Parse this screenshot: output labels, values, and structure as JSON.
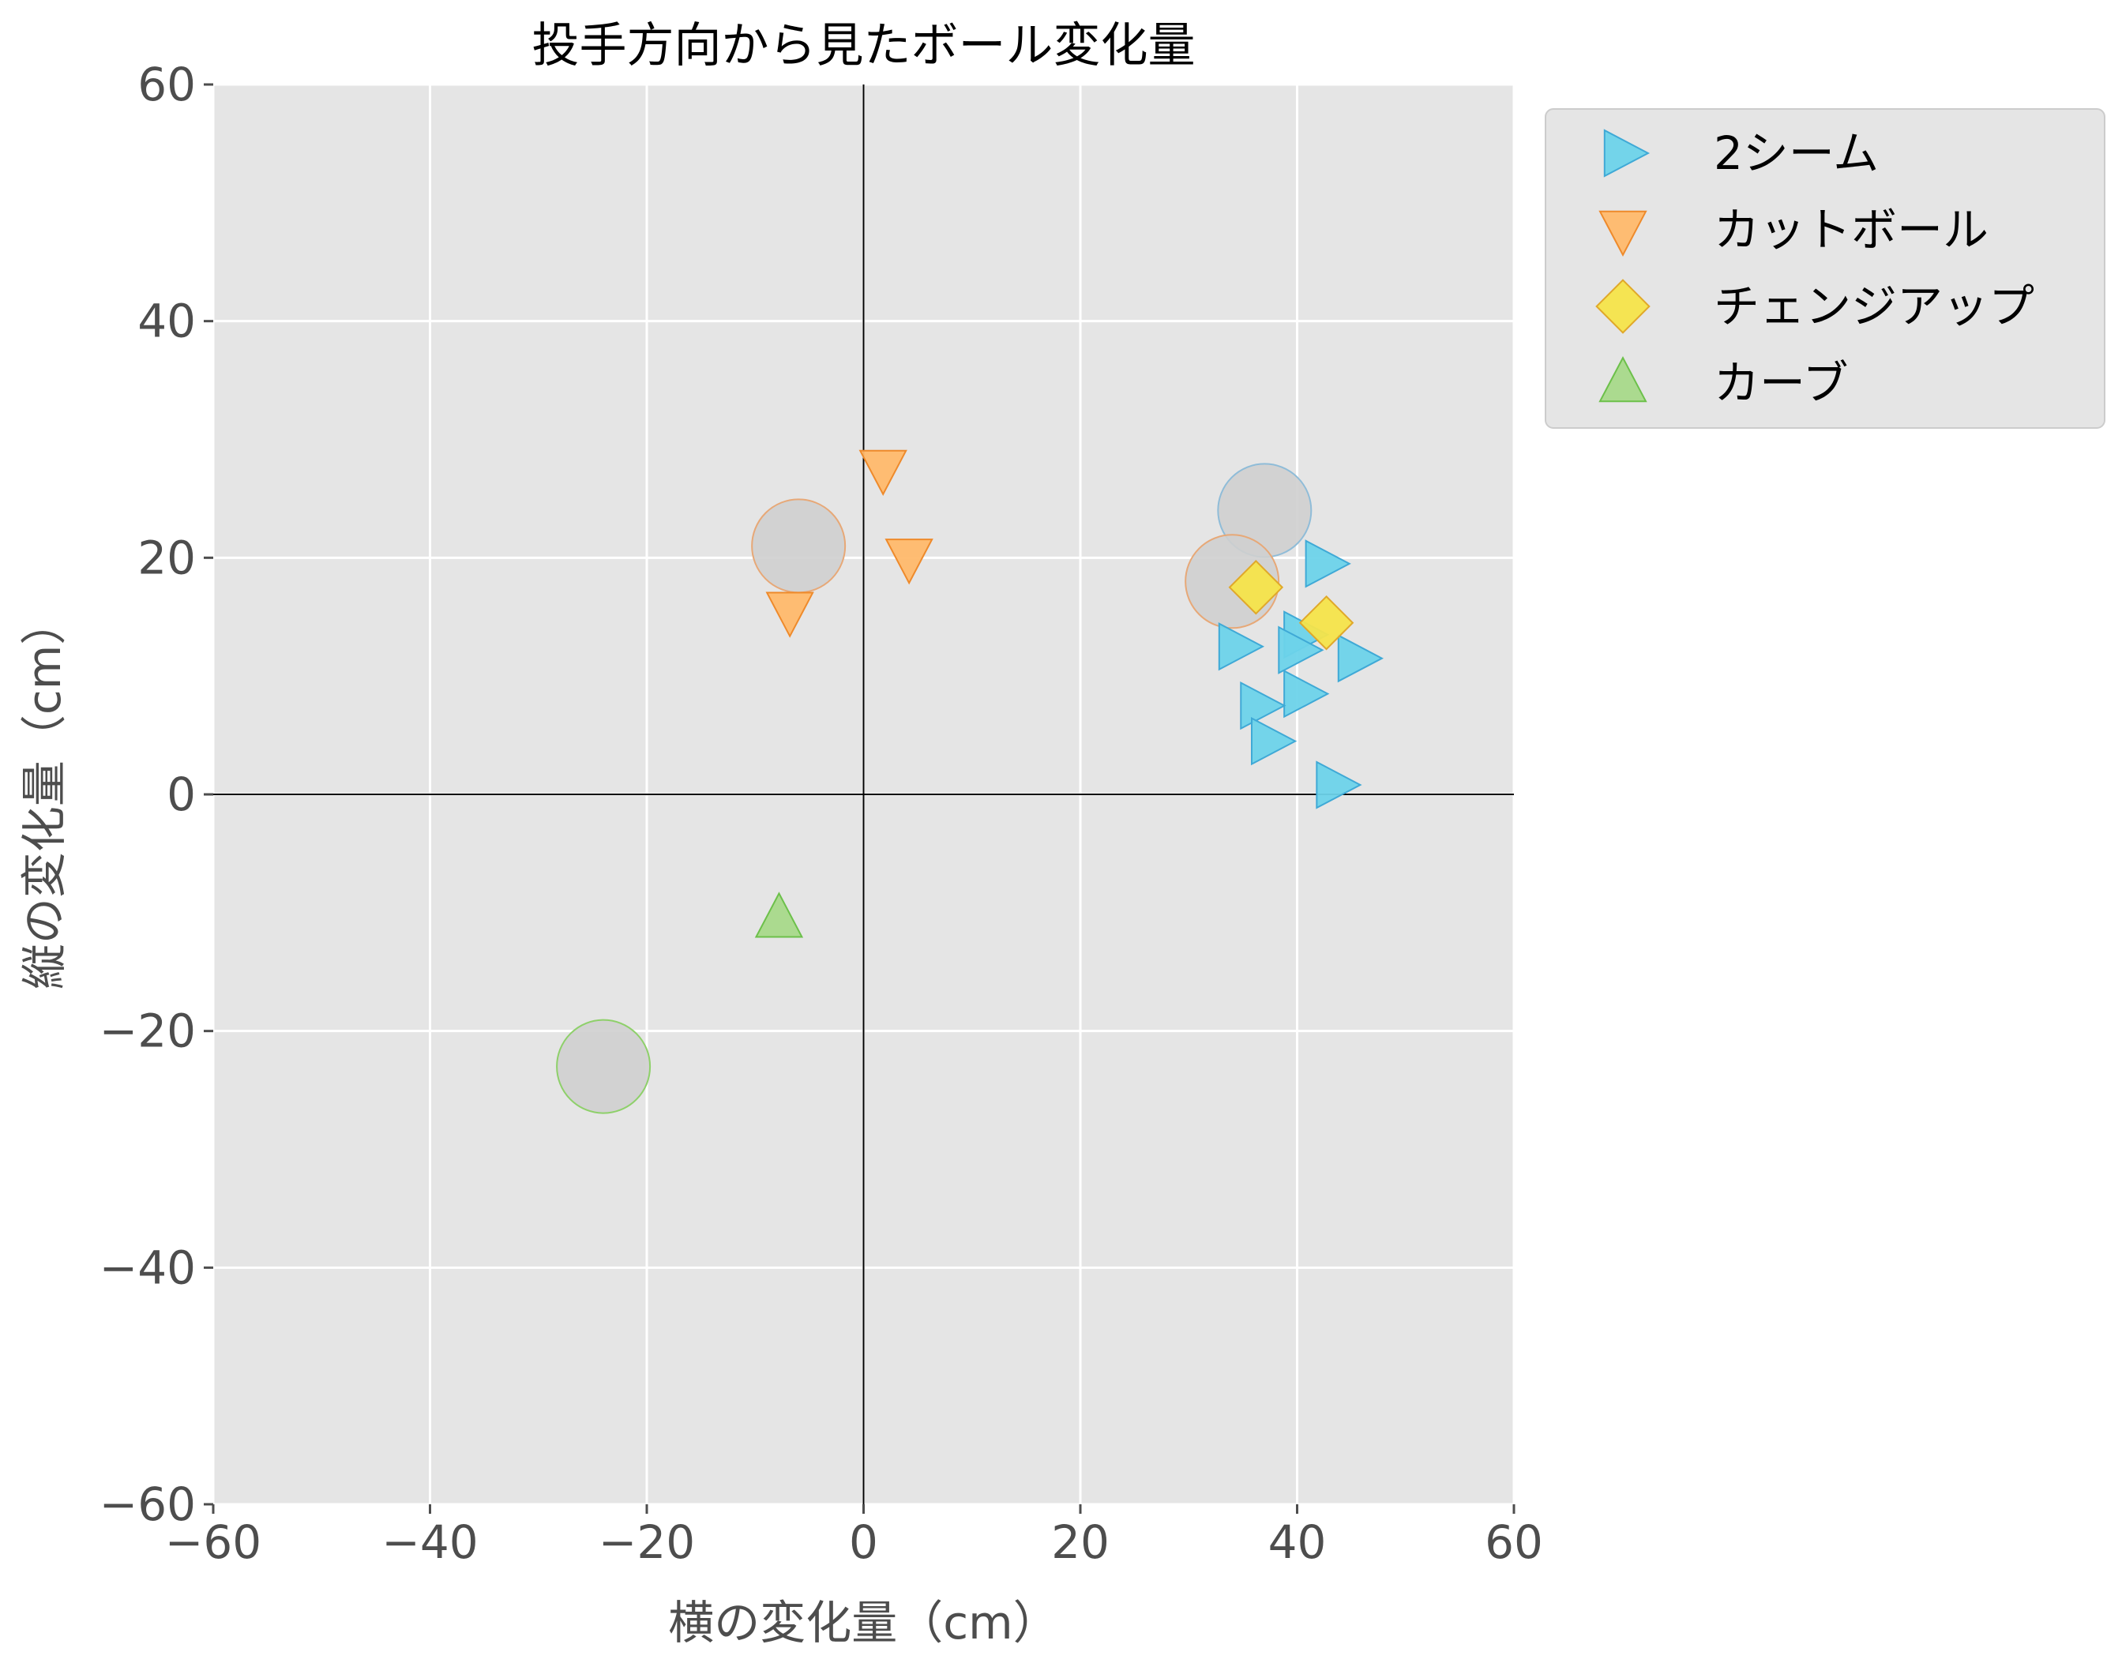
{
  "chart_data": {
    "type": "scatter",
    "title": "投手方向から見たボール変化量",
    "xlabel": "横の変化量（cm）",
    "ylabel": "縦の変化量（cm）",
    "xlim": [
      -60,
      60
    ],
    "ylim": [
      -60,
      60
    ],
    "xticks": [
      -60,
      -40,
      -20,
      0,
      20,
      40,
      60
    ],
    "yticks": [
      -60,
      -40,
      -20,
      0,
      20,
      40,
      60
    ],
    "xtick_labels": [
      "−60",
      "−40",
      "−20",
      "0",
      "20",
      "40",
      "60"
    ],
    "ytick_labels": [
      "−60",
      "−40",
      "−20",
      "0",
      "20",
      "40",
      "60"
    ],
    "grid": true,
    "background": "#e5e5e5",
    "reference_lines": {
      "x": 0,
      "y": 0
    },
    "legend_position": "outside-top-right",
    "series": [
      {
        "name": "2シーム",
        "marker": "triangle-right",
        "color": "#6dd3ea",
        "edge_color": "#3fa9d6",
        "points": [
          [
            42.5,
            19.5
          ],
          [
            40.5,
            13.5
          ],
          [
            34.5,
            12.5
          ],
          [
            40,
            12.2
          ],
          [
            45.5,
            11.5
          ],
          [
            40.5,
            8.5
          ],
          [
            36.5,
            7.5
          ],
          [
            37.5,
            4.5
          ],
          [
            43.5,
            0.8
          ]
        ]
      },
      {
        "name": "カットボール",
        "marker": "triangle-down",
        "color": "#ffb96b",
        "edge_color": "#ee8a2b",
        "points": [
          [
            1.8,
            27.5
          ],
          [
            4.2,
            20
          ],
          [
            -6.8,
            15.5
          ]
        ]
      },
      {
        "name": "チェンジアップ",
        "marker": "diamond",
        "color": "#f5e44a",
        "edge_color": "#e0a82a",
        "points": [
          [
            36.2,
            17.5
          ],
          [
            42.7,
            14.5
          ]
        ]
      },
      {
        "name": "カーブ",
        "marker": "triangle-up",
        "color": "#a8d98a",
        "edge_color": "#6cc04a",
        "points": [
          [
            -7.8,
            -10.5
          ]
        ]
      }
    ],
    "averages": [
      {
        "series": "2シーム",
        "x": 37,
        "y": 24,
        "edge_color": "#8fbcd8"
      },
      {
        "series": "カットボール",
        "x": -6,
        "y": 21,
        "edge_color": "#e7a877"
      },
      {
        "series": "カットボール",
        "x": 34,
        "y": 18,
        "edge_color": "#e7a877"
      },
      {
        "series": "カーブ",
        "x": -24,
        "y": -23,
        "edge_color": "#8ed06a"
      }
    ],
    "average_fill": "#cfcfcf"
  }
}
